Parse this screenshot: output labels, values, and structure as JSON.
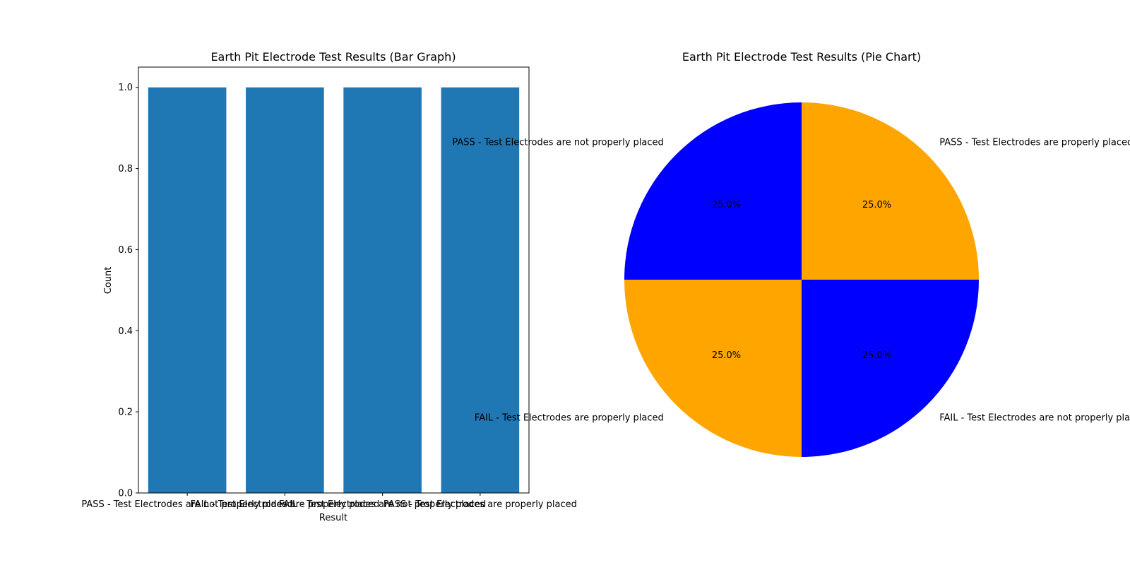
{
  "chart_data": [
    {
      "type": "bar",
      "title": "Earth Pit Electrode Test Results (Bar Graph)",
      "xlabel": "Result",
      "ylabel": "Count",
      "categories": [
        "PASS - Test Electrodes are not properly placed",
        "FAIL - Test Electrodes are properly placed",
        "FAIL - Test Electrodes are not properly placed",
        "PASS - Test Electrodes are properly placed"
      ],
      "values": [
        1,
        1,
        1,
        1
      ],
      "ylim": [
        0,
        1.05
      ],
      "yticks": [
        "0.0",
        "0.2",
        "0.4",
        "0.6",
        "0.8",
        "1.0"
      ],
      "color": "#1f77b4",
      "grid": false
    },
    {
      "type": "pie",
      "title": "Earth Pit Electrode Test Results (Pie Chart)",
      "slices": [
        {
          "label": "PASS - Test Electrodes are not properly placed",
          "value": 1,
          "pct_label": "25.0%",
          "color": "#0000ff"
        },
        {
          "label": "FAIL - Test Electrodes are properly placed",
          "value": 1,
          "pct_label": "25.0%",
          "color": "#ffa500"
        },
        {
          "label": "FAIL - Test Electrodes are not properly placed",
          "value": 1,
          "pct_label": "25.0%",
          "color": "#0000ff"
        },
        {
          "label": "PASS - Test Electrodes are properly placed",
          "value": 1,
          "pct_label": "25.0%",
          "color": "#ffa500"
        }
      ],
      "startangle": 90
    }
  ]
}
